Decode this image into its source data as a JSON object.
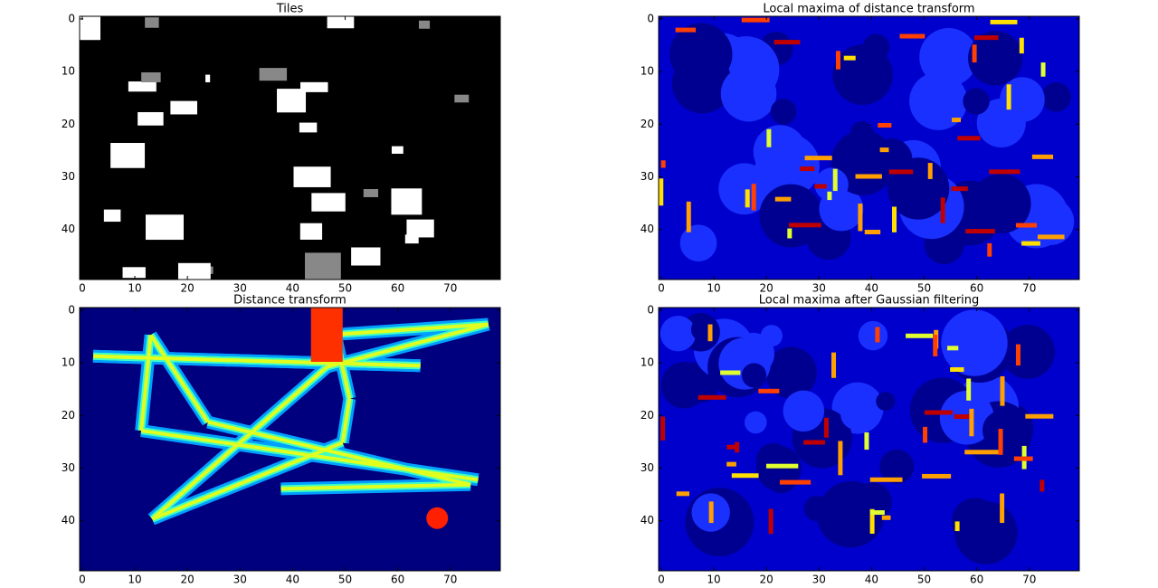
{
  "chart_data": [
    {
      "type": "image",
      "title": "Tiles",
      "cmap": "gray",
      "xlim": [
        -0.5,
        79.5
      ],
      "ylim": [
        49.5,
        -0.5
      ],
      "xticks": [
        0,
        10,
        20,
        30,
        40,
        50,
        60,
        70
      ],
      "yticks": [
        0,
        10,
        20,
        30,
        40
      ]
    },
    {
      "type": "image",
      "title": "Local maxima of distance transform",
      "cmap": "jet-maxima",
      "xlim": [
        -0.5,
        79.5
      ],
      "ylim": [
        49.5,
        -0.5
      ],
      "xticks": [
        0,
        10,
        20,
        30,
        40,
        50,
        60,
        70
      ],
      "yticks": [
        0,
        10,
        20,
        30,
        40
      ]
    },
    {
      "type": "image",
      "title": "Distance transform",
      "cmap": "jet",
      "xlim": [
        -0.5,
        79.5
      ],
      "ylim": [
        49.5,
        -0.5
      ],
      "xticks": [
        0,
        10,
        20,
        30,
        40,
        50,
        60,
        70
      ],
      "yticks": [
        0,
        10,
        20,
        30,
        40
      ]
    },
    {
      "type": "image",
      "title": "Local maxima after Gaussian filtering",
      "cmap": "jet-maxima",
      "xlim": [
        -0.5,
        79.5
      ],
      "ylim": [
        49.5,
        -0.5
      ],
      "xticks": [
        0,
        10,
        20,
        30,
        40,
        50,
        60,
        70
      ],
      "yticks": [
        0,
        10,
        20,
        30,
        40
      ]
    }
  ]
}
